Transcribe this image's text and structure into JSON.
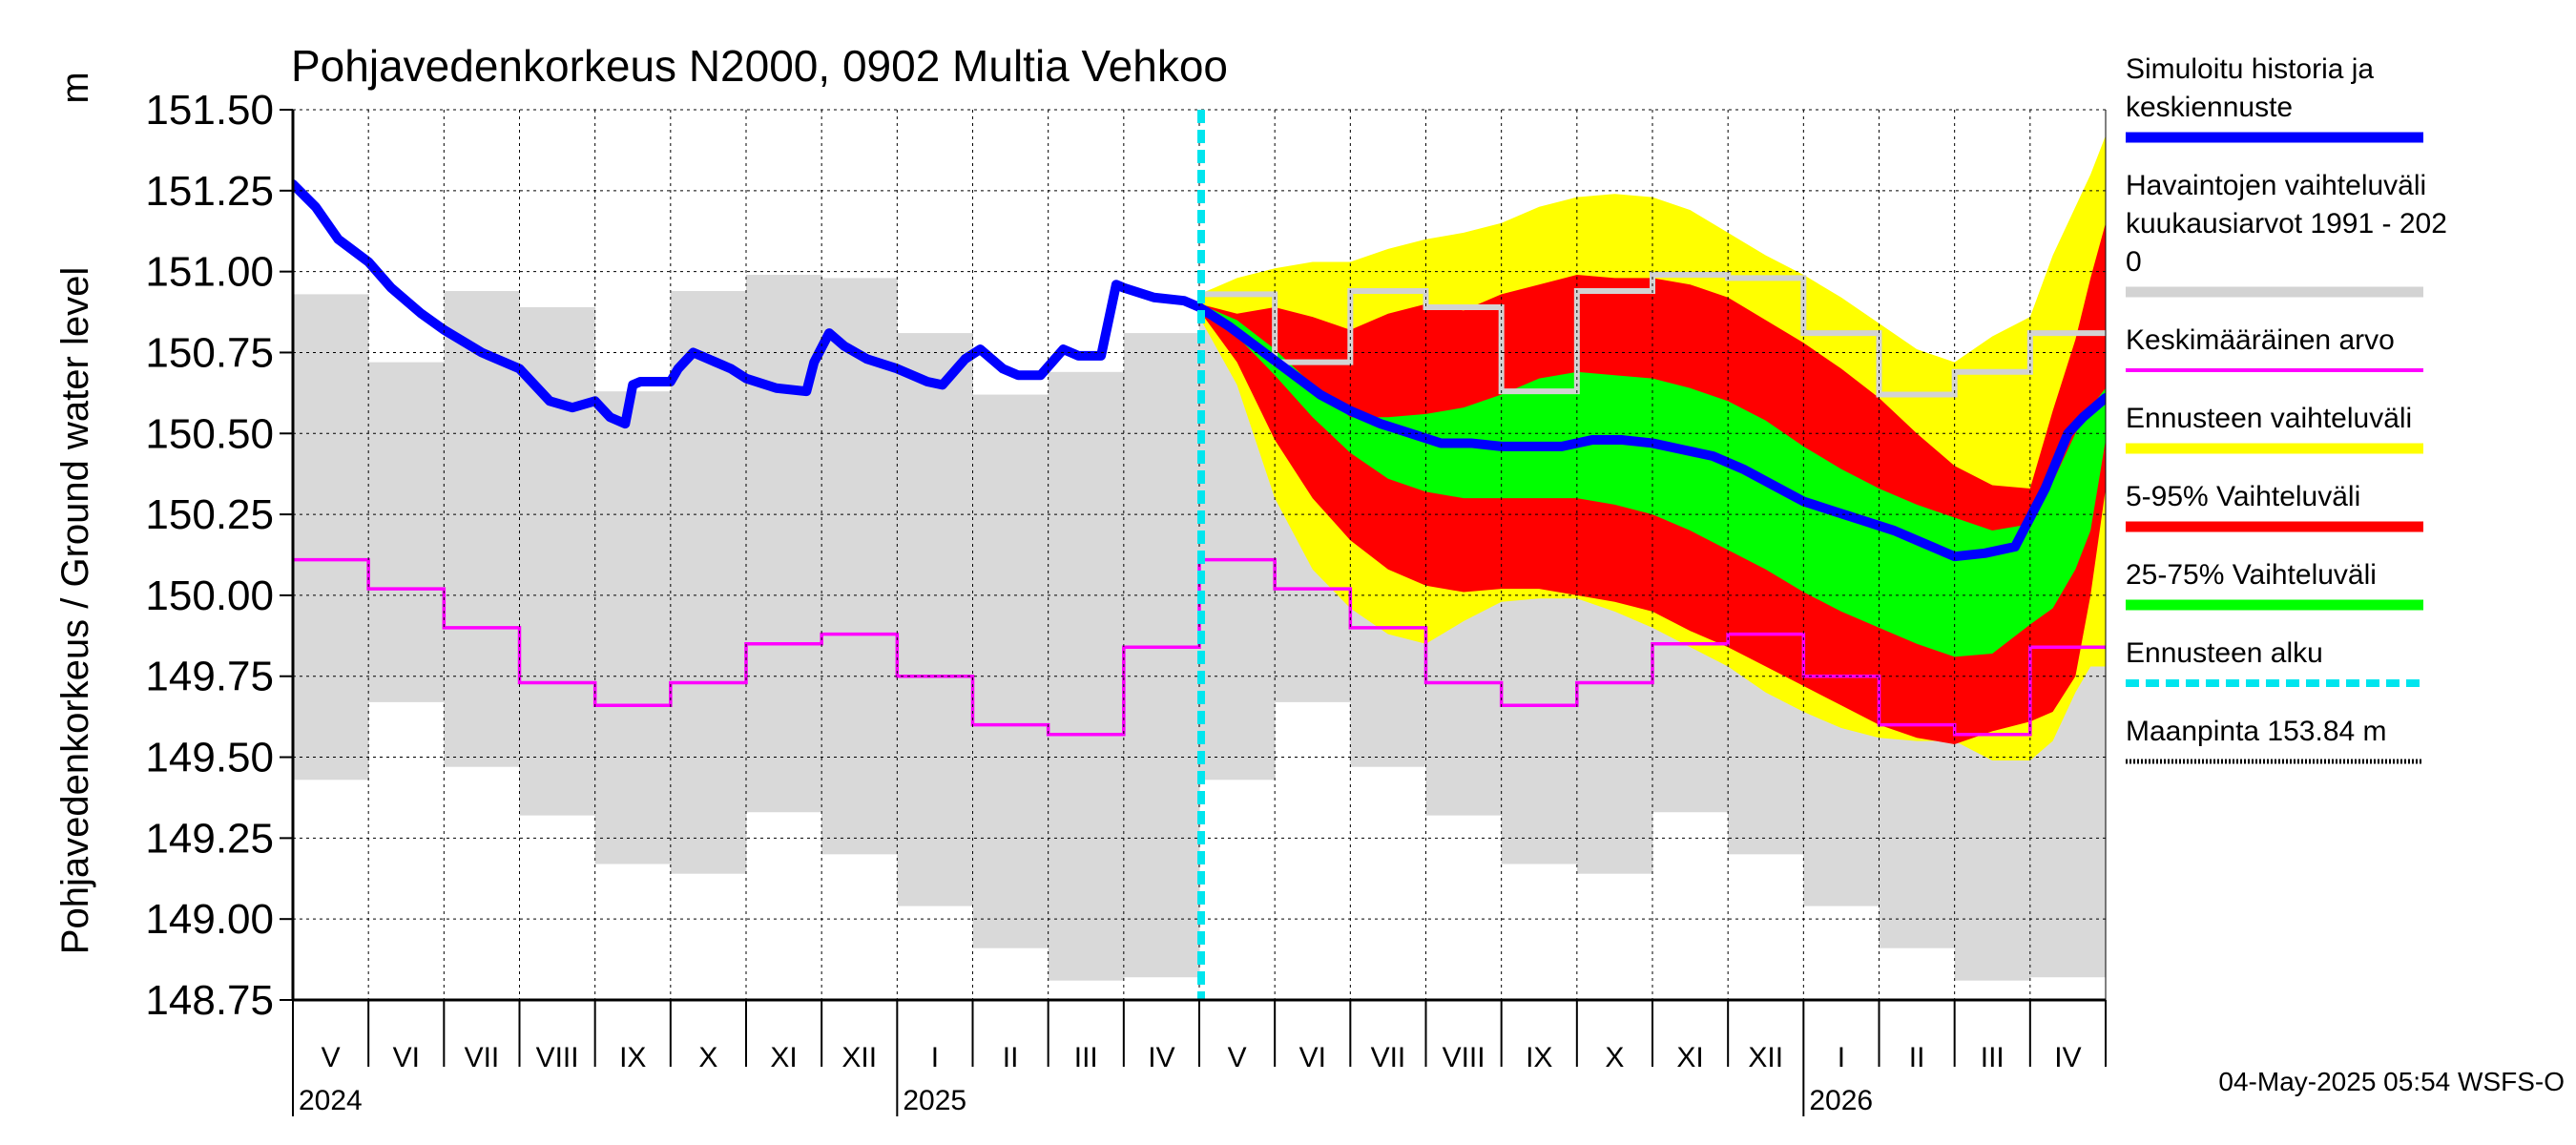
{
  "chart_data": {
    "type": "area",
    "title": "Pohjavedenkorkeus N2000, 0902 Multia Vehkoo",
    "ylabel": "Pohjavedenkorkeus / Ground water level",
    "y_unit": "m",
    "ylim": [
      148.75,
      151.5
    ],
    "yticks": [
      151.5,
      151.25,
      151.0,
      150.75,
      150.5,
      150.25,
      150.0,
      149.75,
      149.5,
      149.25,
      149.0,
      148.75
    ],
    "ytick_labels": [
      "151.50",
      "151.25",
      "151.00",
      "150.75",
      "150.50",
      "150.25",
      "150.00",
      "149.75",
      "149.50",
      "149.25",
      "149.00",
      "148.75"
    ],
    "months": [
      "V",
      "VI",
      "VII",
      "VIII",
      "IX",
      "X",
      "XI",
      "XII",
      "I",
      "II",
      "III",
      "IV",
      "V",
      "VI",
      "VII",
      "VIII",
      "IX",
      "X",
      "XI",
      "XII",
      "I",
      "II",
      "III",
      "IV"
    ],
    "years": [
      {
        "label": "2024",
        "month_index": 0
      },
      {
        "label": "2025",
        "month_index": 8
      },
      {
        "label": "2026",
        "month_index": 20
      }
    ],
    "grid": true,
    "forecast_start_month": 12,
    "observed_range": {
      "name": "Havaintojen vaihteluväli kuukausiarvot 1991 - 2020",
      "color": "#d9d9d9",
      "high": [
        150.93,
        150.72,
        150.94,
        150.89,
        150.63,
        150.94,
        150.99,
        150.98,
        150.81,
        150.62,
        150.69,
        150.81,
        150.93,
        150.72,
        150.94,
        150.89,
        150.63,
        150.94,
        150.99,
        150.98,
        150.81,
        150.62,
        150.69,
        150.81
      ],
      "low": [
        149.43,
        149.67,
        149.47,
        149.32,
        149.17,
        149.14,
        149.33,
        149.2,
        149.04,
        148.91,
        148.81,
        148.82,
        149.43,
        149.67,
        149.47,
        149.32,
        149.17,
        149.14,
        149.33,
        149.2,
        149.04,
        148.91,
        148.81,
        148.82
      ]
    },
    "mean": {
      "name": "Keskimääräinen arvo",
      "color": "#ff00ff",
      "values": [
        150.11,
        150.02,
        149.9,
        149.73,
        149.66,
        149.73,
        149.85,
        149.88,
        149.75,
        149.6,
        149.57,
        149.84,
        150.11,
        150.02,
        149.9,
        149.73,
        149.66,
        149.73,
        149.85,
        149.88,
        149.75,
        149.6,
        149.57,
        149.84
      ]
    },
    "series": [
      {
        "name": "Simuloitu historia ja keskiennuste",
        "color": "#0000ff",
        "x": [
          0,
          0.3,
          0.6,
          1,
          1.3,
          1.7,
          2,
          2.5,
          3,
          3.4,
          3.7,
          4,
          4.2,
          4.4,
          4.5,
          4.6,
          4.8,
          5,
          5.1,
          5.3,
          5.6,
          5.8,
          6,
          6.4,
          6.8,
          6.9,
          7.1,
          7.3,
          7.6,
          8,
          8.4,
          8.6,
          8.9,
          9.1,
          9.4,
          9.6,
          9.9,
          10.2,
          10.4,
          10.7,
          10.9,
          11,
          11.4,
          11.8,
          12,
          12.4,
          12.8,
          13.2,
          13.6,
          14,
          14.4,
          14.8,
          15.2,
          15.6,
          16,
          16.4,
          16.8,
          17.2,
          17.6,
          18,
          18.4,
          18.8,
          19.2,
          19.6,
          20,
          20.4,
          20.8,
          21.2,
          21.6,
          22,
          22.4,
          22.8,
          23.2,
          23.5,
          23.7,
          24
        ],
        "y": [
          151.27,
          151.2,
          151.1,
          151.03,
          150.95,
          150.87,
          150.82,
          150.75,
          150.7,
          150.6,
          150.58,
          150.6,
          150.55,
          150.53,
          150.65,
          150.66,
          150.66,
          150.66,
          150.7,
          150.75,
          150.72,
          150.7,
          150.67,
          150.64,
          150.63,
          150.72,
          150.81,
          150.77,
          150.73,
          150.7,
          150.66,
          150.65,
          150.73,
          150.76,
          150.7,
          150.68,
          150.68,
          150.76,
          150.74,
          150.74,
          150.96,
          150.95,
          150.92,
          150.91,
          150.89,
          150.83,
          150.76,
          150.69,
          150.62,
          150.57,
          150.53,
          150.5,
          150.47,
          150.47,
          150.46,
          150.46,
          150.46,
          150.48,
          150.48,
          150.47,
          150.45,
          150.43,
          150.39,
          150.34,
          150.29,
          150.26,
          150.23,
          150.2,
          150.16,
          150.12,
          150.13,
          150.15,
          150.33,
          150.5,
          150.55,
          150.61
        ]
      }
    ],
    "forecast_bands": {
      "x": [
        12,
        12.5,
        13,
        13.5,
        14,
        14.5,
        15,
        15.5,
        16,
        16.5,
        17,
        17.5,
        18,
        18.5,
        19,
        19.5,
        20,
        20.5,
        21,
        21.5,
        22,
        22.5,
        23,
        23.3,
        23.6,
        23.8,
        24
      ],
      "band_5_95": {
        "name": "5-95% Vaihteluväli",
        "color": "#ff0000",
        "high": [
          150.9,
          150.87,
          150.89,
          150.86,
          150.82,
          150.87,
          150.9,
          150.88,
          150.93,
          150.96,
          150.99,
          150.98,
          150.98,
          150.96,
          150.92,
          150.85,
          150.78,
          150.7,
          150.61,
          150.5,
          150.4,
          150.34,
          150.33,
          150.57,
          150.79,
          150.98,
          151.15
        ],
        "low": [
          150.88,
          150.72,
          150.48,
          150.3,
          150.17,
          150.08,
          150.03,
          150.01,
          150.02,
          150.02,
          150.0,
          149.98,
          149.95,
          149.89,
          149.84,
          149.78,
          149.72,
          149.66,
          149.6,
          149.56,
          149.54,
          149.58,
          149.61,
          149.64,
          149.75,
          150.0,
          150.33
        ]
      },
      "band_25_75": {
        "name": "25-75% Vaihteluväli",
        "color": "#00ff00",
        "high": [
          150.9,
          150.85,
          150.76,
          150.65,
          150.55,
          150.55,
          150.56,
          150.58,
          150.62,
          150.67,
          150.69,
          150.68,
          150.67,
          150.64,
          150.6,
          150.54,
          150.46,
          150.39,
          150.33,
          150.28,
          150.24,
          150.2,
          150.22,
          150.35,
          150.5,
          150.58,
          150.64
        ],
        "low": [
          150.88,
          150.8,
          150.68,
          150.55,
          150.44,
          150.36,
          150.32,
          150.3,
          150.3,
          150.3,
          150.3,
          150.28,
          150.25,
          150.2,
          150.14,
          150.08,
          150.01,
          149.95,
          149.9,
          149.85,
          149.81,
          149.82,
          149.91,
          149.96,
          150.08,
          150.2,
          150.48
        ]
      },
      "band_full": {
        "name": "Ennusteen vaihteluväli",
        "color": "#ffff00",
        "high": [
          150.93,
          150.98,
          151.01,
          151.03,
          151.03,
          151.07,
          151.1,
          151.12,
          151.15,
          151.2,
          151.23,
          151.24,
          151.23,
          151.19,
          151.12,
          151.05,
          150.99,
          150.92,
          150.84,
          150.76,
          150.72,
          150.8,
          150.86,
          151.05,
          151.2,
          151.3,
          151.42
        ],
        "low": [
          150.86,
          150.65,
          150.3,
          150.08,
          149.96,
          149.88,
          149.85,
          149.92,
          149.98,
          149.99,
          149.99,
          149.95,
          149.9,
          149.84,
          149.78,
          149.7,
          149.64,
          149.59,
          149.56,
          149.55,
          149.55,
          149.49,
          149.49,
          149.55,
          149.7,
          149.78,
          149.78
        ]
      }
    },
    "legend": {
      "placement": "right",
      "entries": [
        {
          "lines": [
            "Simuloitu historia ja",
            "keskiennuste"
          ],
          "color": "#0000ff",
          "style": "thick"
        },
        {
          "lines": [
            "Havaintojen vaihteluväli",
            " kuukausiarvot 1991 - 202",
            "0"
          ],
          "color": "#d3d3d3",
          "style": "thick"
        },
        {
          "lines": [
            "Keskimääräinen arvo"
          ],
          "color": "#ff00ff",
          "style": "thin"
        },
        {
          "lines": [
            "Ennusteen vaihteluväli"
          ],
          "color": "#ffff00",
          "style": "thick"
        },
        {
          "lines": [
            "5-95% Vaihteluväli"
          ],
          "color": "#ff0000",
          "style": "thick"
        },
        {
          "lines": [
            "25-75% Vaihteluväli"
          ],
          "color": "#00ff00",
          "style": "thick"
        },
        {
          "lines": [
            "Ennusteen alku"
          ],
          "color": "#00e5ee",
          "style": "dashed"
        },
        {
          "lines": [
            "Maanpinta 153.84 m"
          ],
          "color": "#000000",
          "style": "dotted"
        }
      ]
    },
    "footer": "04-May-2025 05:54 WSFS-O"
  }
}
